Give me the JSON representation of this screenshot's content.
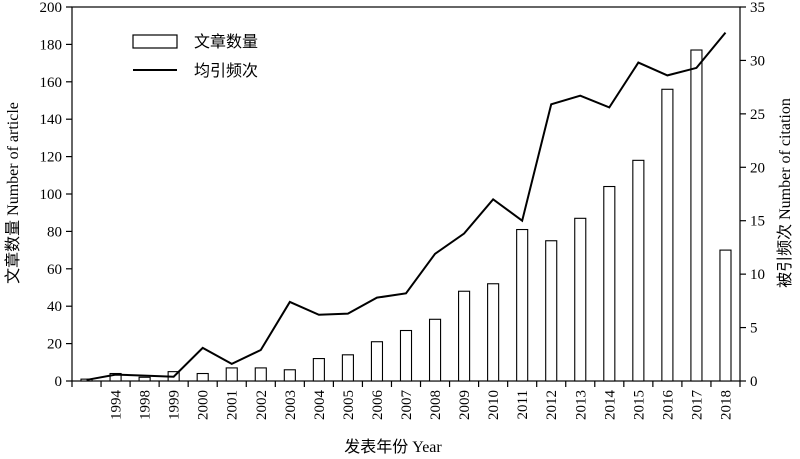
{
  "chart_data": {
    "type": "bar+line",
    "categories": [
      "",
      "1994",
      "1998",
      "1999",
      "2000",
      "2001",
      "2002",
      "2003",
      "2004",
      "2005",
      "2006",
      "2007",
      "2008",
      "2009",
      "2010",
      "2011",
      "2012",
      "2013",
      "2014",
      "2015",
      "2016",
      "2017",
      "2018"
    ],
    "series": [
      {
        "name": "文章数量",
        "type": "bar",
        "axis": "left",
        "values": [
          1,
          4,
          2,
          5,
          4,
          7,
          7,
          6,
          12,
          14,
          21,
          27,
          33,
          48,
          52,
          81,
          75,
          87,
          104,
          118,
          156,
          177,
          70
        ]
      },
      {
        "name": "均引频次",
        "type": "line",
        "axis": "right",
        "values": [
          0.1,
          0.6,
          0.5,
          0.4,
          3.1,
          1.6,
          2.9,
          7.4,
          6.2,
          6.3,
          7.8,
          8.2,
          11.9,
          13.8,
          17.0,
          15.0,
          25.9,
          26.7,
          25.6,
          29.8,
          28.6,
          29.3,
          32.6
        ]
      }
    ],
    "xlabel": "发表年份 Year",
    "ylabel_left": "文章数量 Number of article",
    "ylabel_right": "被引频次 Number of citation",
    "ylim_left": [
      0,
      200
    ],
    "yticks_left": [
      0,
      20,
      40,
      60,
      80,
      100,
      120,
      140,
      160,
      180,
      200
    ],
    "ylim_right": [
      0,
      35
    ],
    "yticks_right": [
      0,
      5,
      10,
      15,
      20,
      25,
      30,
      35
    ],
    "legend_position": "top-left",
    "grid": false,
    "bar_fill": "#ffffff",
    "bar_stroke": "#000000",
    "line_color": "#000000"
  }
}
